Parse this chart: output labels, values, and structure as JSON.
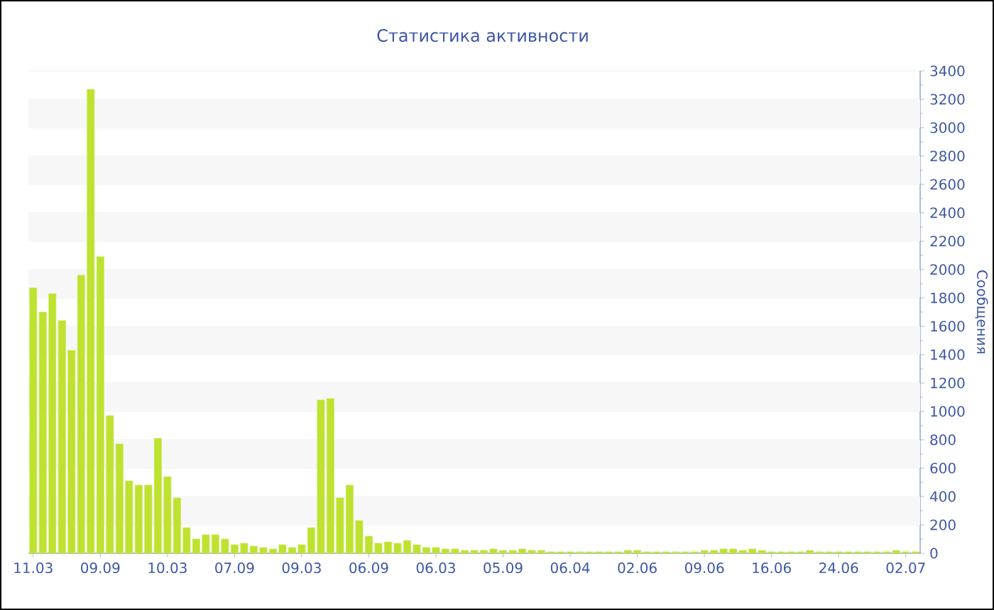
{
  "chart_data": {
    "type": "bar",
    "title": "Статистика активности",
    "ylabel": "Сообщения",
    "categories": [
      "11.03",
      null,
      null,
      null,
      null,
      null,
      null,
      "09.09",
      null,
      null,
      null,
      null,
      null,
      null,
      "10.03",
      null,
      null,
      null,
      null,
      null,
      null,
      "07.09",
      null,
      null,
      null,
      null,
      null,
      null,
      "09.03",
      null,
      null,
      null,
      null,
      null,
      null,
      "06.09",
      null,
      null,
      null,
      null,
      null,
      null,
      "06.03",
      null,
      null,
      null,
      null,
      null,
      null,
      "05.09",
      null,
      null,
      null,
      null,
      null,
      null,
      "06.04",
      null,
      null,
      null,
      null,
      null,
      null,
      "02.06",
      null,
      null,
      null,
      null,
      null,
      null,
      "09.06",
      null,
      null,
      null,
      null,
      null,
      null,
      "16.06",
      null,
      null,
      null,
      null,
      null,
      null,
      "24.06",
      null,
      null,
      null,
      null,
      null,
      null,
      "02.07",
      null
    ],
    "values": [
      1870,
      1700,
      1830,
      1640,
      1430,
      1960,
      3270,
      2090,
      970,
      770,
      510,
      480,
      480,
      810,
      540,
      390,
      180,
      100,
      130,
      130,
      100,
      60,
      70,
      50,
      40,
      30,
      60,
      40,
      60,
      180,
      1080,
      1090,
      390,
      480,
      230,
      120,
      70,
      80,
      70,
      90,
      60,
      40,
      40,
      30,
      30,
      20,
      20,
      20,
      30,
      20,
      20,
      30,
      20,
      20,
      10,
      10,
      10,
      10,
      10,
      10,
      10,
      10,
      20,
      20,
      10,
      10,
      10,
      10,
      10,
      10,
      20,
      20,
      30,
      30,
      20,
      30,
      20,
      10,
      10,
      10,
      10,
      20,
      10,
      10,
      10,
      10,
      10,
      10,
      10,
      10,
      20,
      10,
      10
    ],
    "color": "#bde22f",
    "ylim": [
      0,
      3400
    ],
    "yticks": [
      0,
      200,
      400,
      600,
      800,
      1000,
      1200,
      1400,
      1600,
      1800,
      2000,
      2200,
      2400,
      2600,
      2800,
      3000,
      3200,
      3400
    ],
    "grid": "y"
  }
}
